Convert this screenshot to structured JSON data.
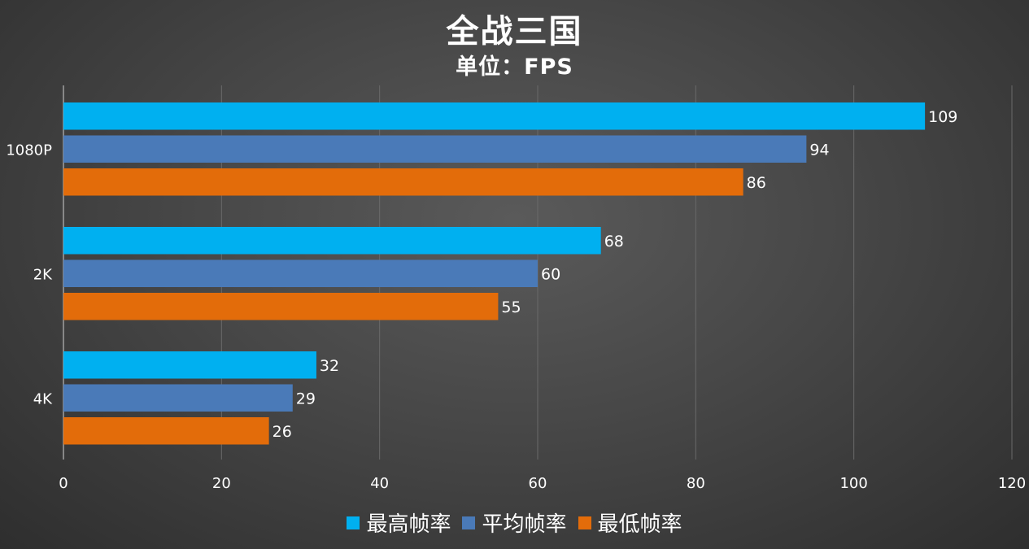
{
  "chart_data": {
    "type": "bar",
    "orientation": "horizontal",
    "title": "全战三国",
    "subtitle": "单位：FPS",
    "categories": [
      "1080P",
      "2K",
      "4K"
    ],
    "series": [
      {
        "name": "最高帧率",
        "color": "#00b0f0",
        "values": [
          109,
          68,
          32
        ]
      },
      {
        "name": "平均帧率",
        "color": "#4a7ab8",
        "values": [
          94,
          60,
          29
        ]
      },
      {
        "name": "最低帧率",
        "color": "#e36c0a",
        "values": [
          86,
          55,
          26
        ]
      }
    ],
    "xlim": [
      0,
      120
    ],
    "xticks": [
      0,
      20,
      40,
      60,
      80,
      100,
      120
    ],
    "grid": true,
    "legend_position": "bottom-center"
  }
}
